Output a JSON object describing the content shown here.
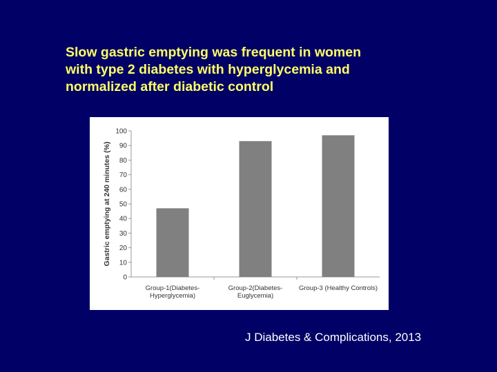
{
  "slide": {
    "title_lines": [
      "Slow gastric emptying was frequent in women",
      "with type 2 diabetes with hyperglycemia and",
      "normalized after diabetic control"
    ],
    "citation": "J Diabetes & Complications, 2013"
  },
  "colors": {
    "background": "#000066",
    "title": "#ffff66",
    "citation": "#ffffff",
    "bar": "#808080",
    "axis": "#999999",
    "text": "#333333"
  },
  "chart_data": {
    "type": "bar",
    "title": "",
    "xlabel": "",
    "ylabel": "Gastric emptying at 240 minutes (%)",
    "ylim": [
      0,
      100
    ],
    "yticks": [
      0,
      10,
      20,
      30,
      40,
      50,
      60,
      70,
      80,
      90,
      100
    ],
    "grid": false,
    "categories": [
      [
        "Group-1(Diabetes-",
        "Hyperglycemia)"
      ],
      [
        "Group-2(Diabetes-",
        "Euglycemia)"
      ],
      [
        "Group-3 (Healthy Controls)"
      ]
    ],
    "values": [
      47,
      93,
      97
    ]
  }
}
